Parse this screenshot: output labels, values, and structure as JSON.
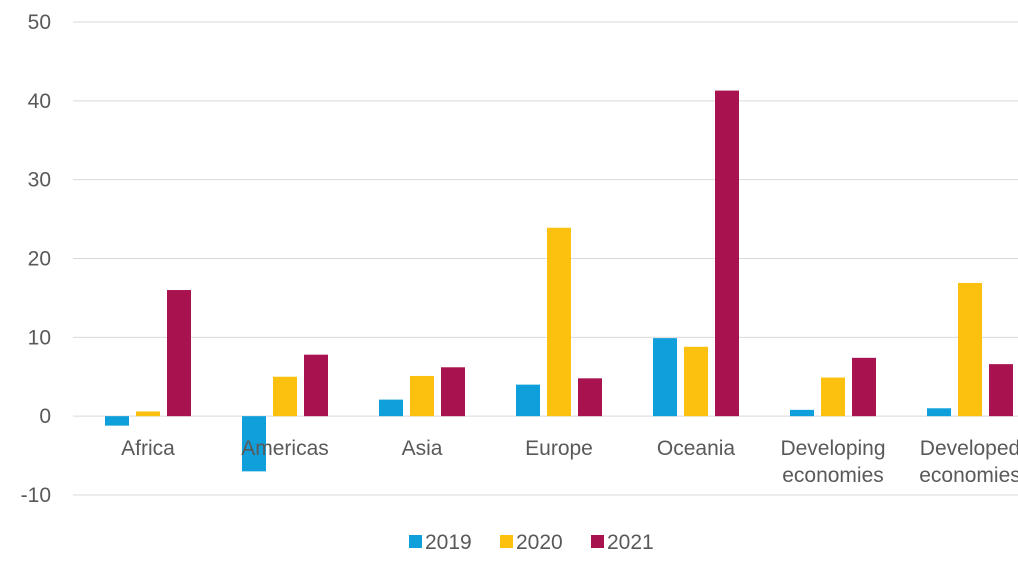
{
  "chart_data": {
    "type": "bar",
    "categories": [
      [
        "Africa"
      ],
      [
        "Americas"
      ],
      [
        "Asia"
      ],
      [
        "Europe"
      ],
      [
        "Oceania"
      ],
      [
        "Developing",
        "economies"
      ],
      [
        "Developed",
        "economies"
      ]
    ],
    "series": [
      {
        "name": "2019",
        "color": "#0f9fdb",
        "values": [
          -1.2,
          -7.0,
          2.1,
          4.0,
          9.9,
          0.8,
          1.0
        ]
      },
      {
        "name": "2020",
        "color": "#fcc10e",
        "values": [
          0.6,
          5.0,
          5.1,
          23.9,
          8.8,
          4.9,
          16.9
        ]
      },
      {
        "name": "2021",
        "color": "#a8124e",
        "values": [
          16.0,
          7.8,
          6.2,
          4.8,
          41.3,
          7.4,
          6.6
        ]
      }
    ],
    "ylim": [
      -10,
      50
    ],
    "yticks": [
      -10,
      0,
      10,
      20,
      30,
      40,
      50
    ],
    "grid": true,
    "legend": "bottom-center",
    "xlabel": "",
    "ylabel": "",
    "title": ""
  }
}
